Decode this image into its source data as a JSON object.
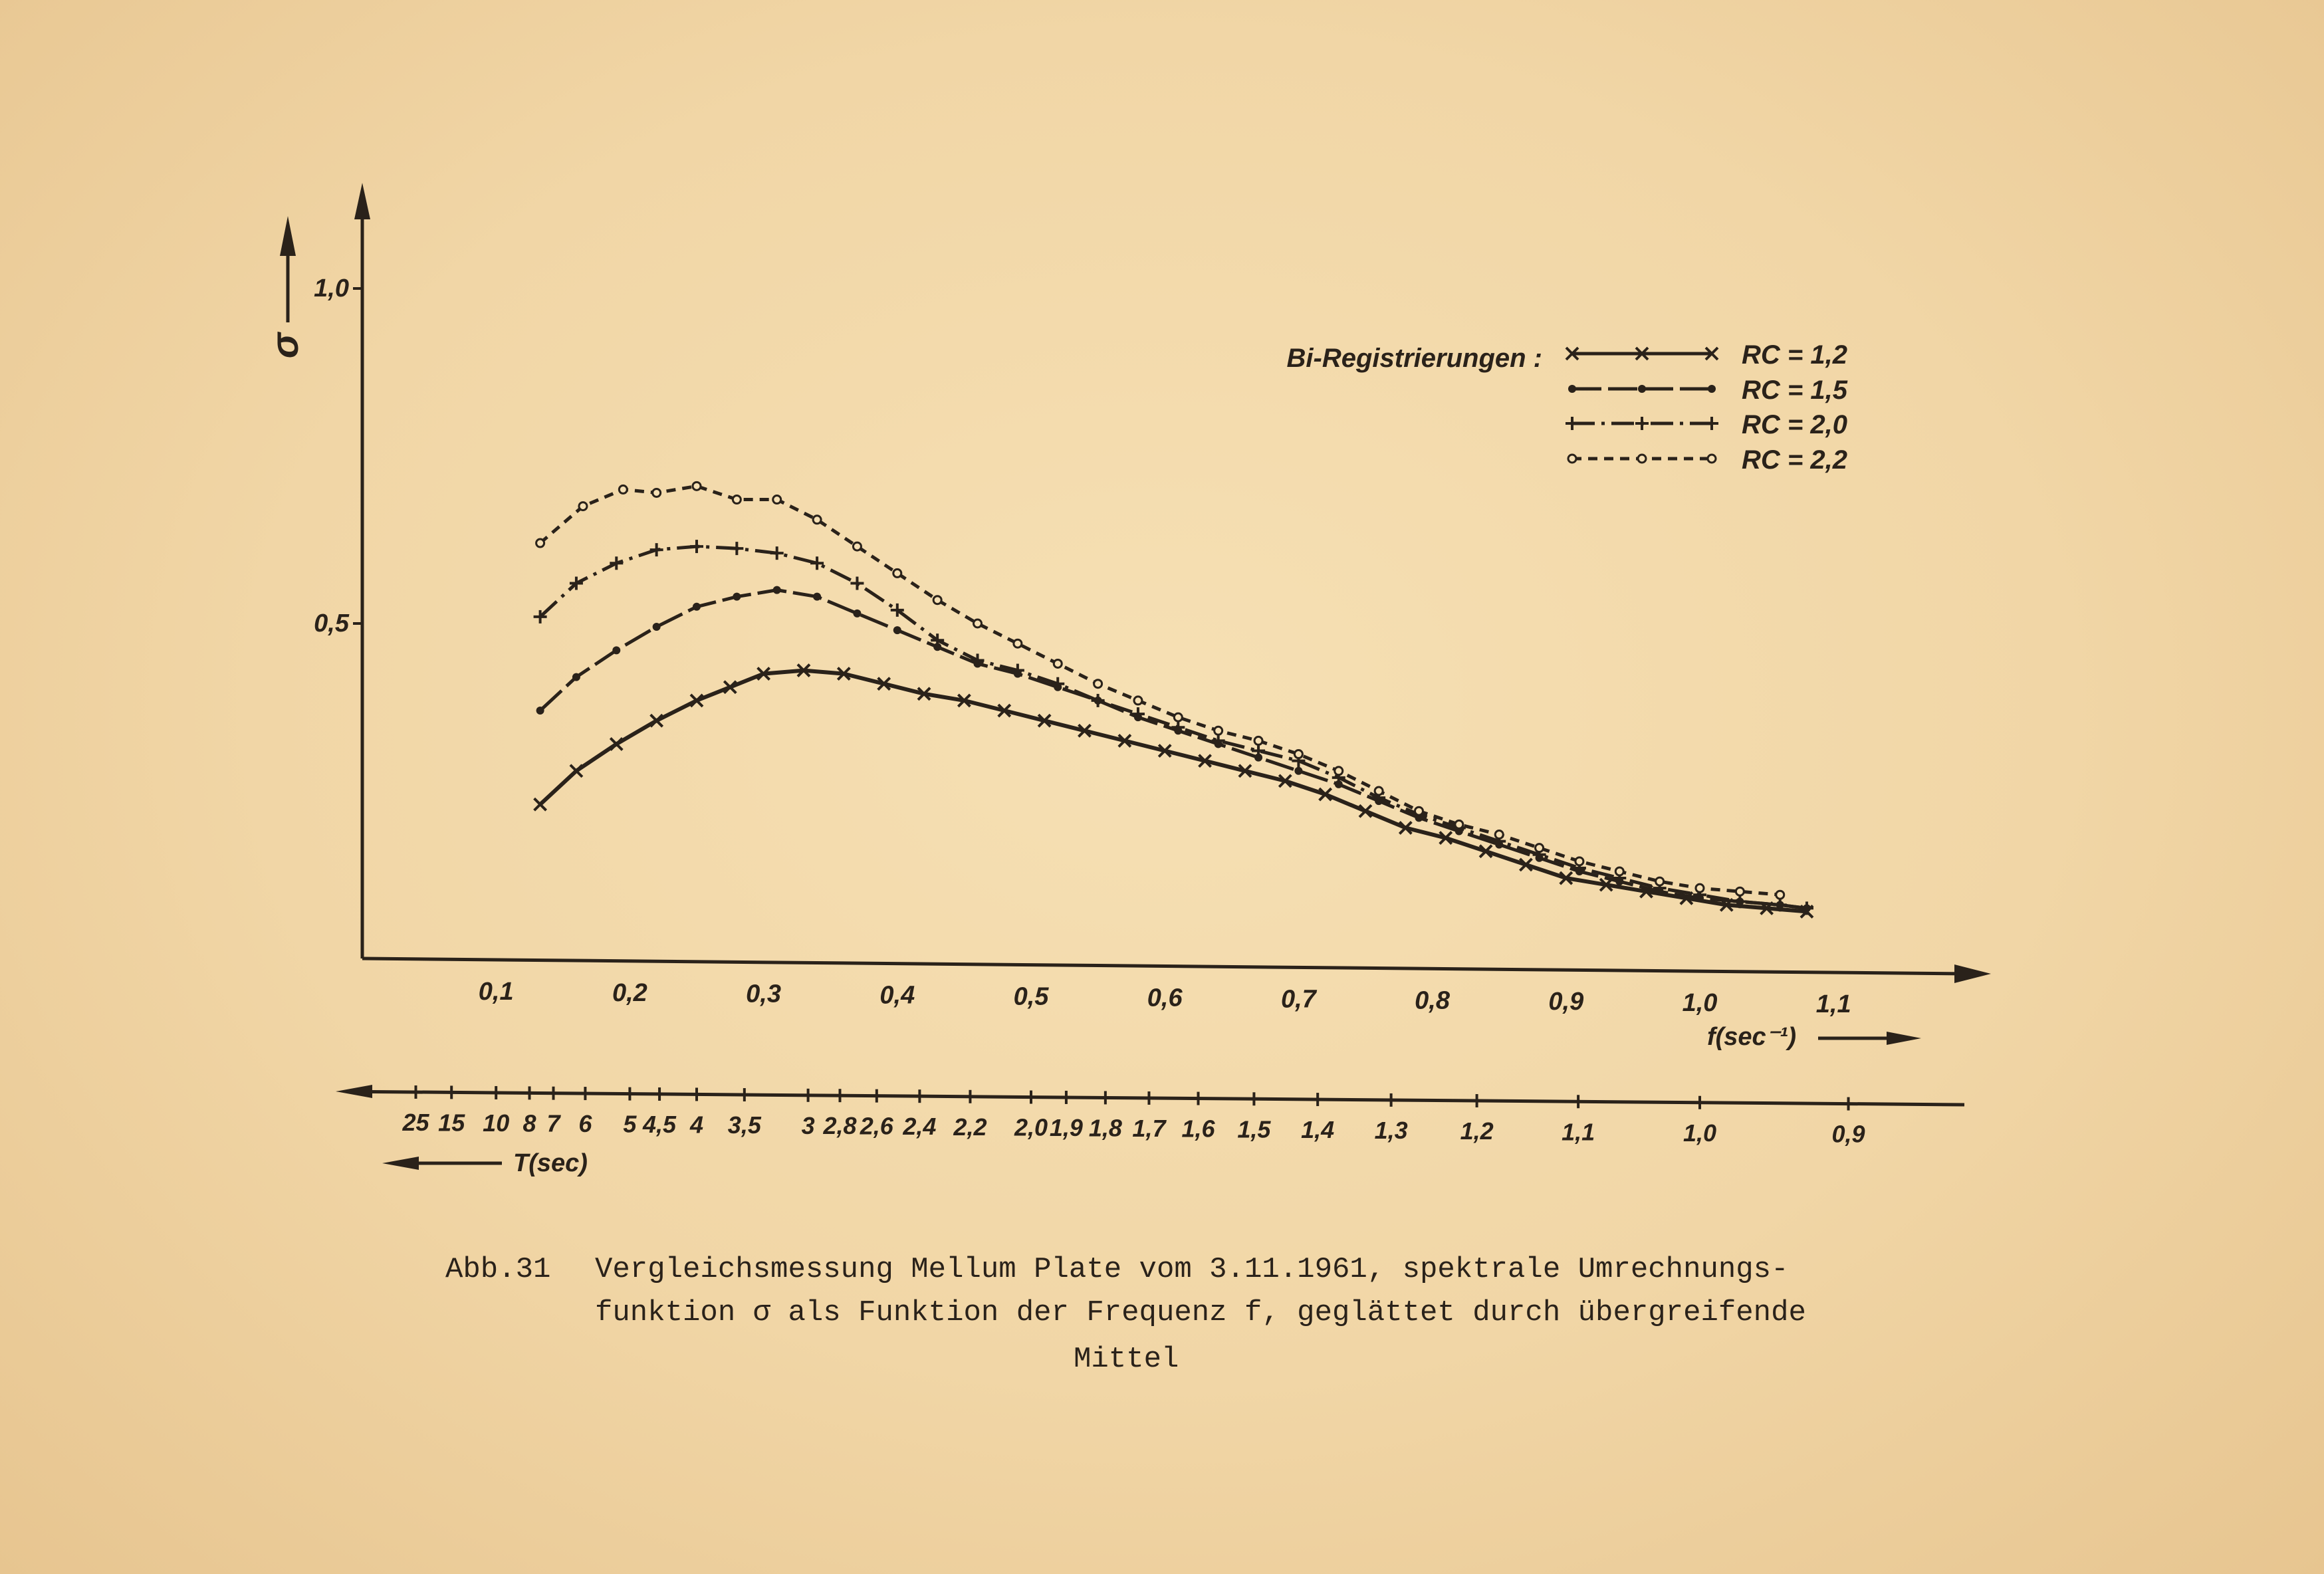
{
  "chart_data": {
    "type": "line",
    "ylabel": "σ",
    "y_ticks": [
      {
        "value": 0.5,
        "label": "0,5"
      },
      {
        "value": 1.0,
        "label": "1,0"
      }
    ],
    "ylim": [
      0,
      1.15
    ],
    "x_ticks": [
      {
        "value": 0.1,
        "label": "0,1"
      },
      {
        "value": 0.2,
        "label": "0,2"
      },
      {
        "value": 0.3,
        "label": "0,3"
      },
      {
        "value": 0.4,
        "label": "0,4"
      },
      {
        "value": 0.5,
        "label": "0,5"
      },
      {
        "value": 0.6,
        "label": "0,6"
      },
      {
        "value": 0.7,
        "label": "0,7"
      },
      {
        "value": 0.8,
        "label": "0,8"
      },
      {
        "value": 0.9,
        "label": "0,9"
      },
      {
        "value": 1.0,
        "label": "1,0"
      },
      {
        "value": 1.1,
        "label": "1,1"
      }
    ],
    "xlim": [
      0,
      1.22
    ],
    "xlabel": "f(sec⁻¹)",
    "legend_title": "Bi-Registrierungen :",
    "legend_position": "top-right",
    "series": [
      {
        "name": "RC = 1,2",
        "marker": "x",
        "dash": "solid",
        "x": [
          0.133,
          0.16,
          0.19,
          0.22,
          0.25,
          0.275,
          0.3,
          0.33,
          0.36,
          0.39,
          0.42,
          0.45,
          0.48,
          0.51,
          0.54,
          0.57,
          0.6,
          0.63,
          0.66,
          0.69,
          0.72,
          0.75,
          0.78,
          0.81,
          0.84,
          0.87,
          0.9,
          0.93,
          0.96,
          0.99,
          1.02,
          1.05,
          1.08
        ],
        "values": [
          0.23,
          0.28,
          0.32,
          0.355,
          0.385,
          0.405,
          0.425,
          0.43,
          0.425,
          0.41,
          0.395,
          0.385,
          0.37,
          0.355,
          0.34,
          0.325,
          0.31,
          0.295,
          0.28,
          0.265,
          0.245,
          0.22,
          0.195,
          0.18,
          0.16,
          0.14,
          0.12,
          0.11,
          0.1,
          0.09,
          0.08,
          0.075,
          0.07
        ]
      },
      {
        "name": "RC = 1,5",
        "marker": "dot",
        "dash": "long-dash",
        "x": [
          0.133,
          0.16,
          0.19,
          0.22,
          0.25,
          0.28,
          0.31,
          0.34,
          0.37,
          0.4,
          0.43,
          0.46,
          0.49,
          0.52,
          0.55,
          0.58,
          0.61,
          0.64,
          0.67,
          0.7,
          0.73,
          0.76,
          0.79,
          0.82,
          0.85,
          0.88,
          0.91,
          0.94,
          0.97,
          1.0,
          1.03,
          1.06,
          1.08
        ],
        "values": [
          0.37,
          0.42,
          0.46,
          0.495,
          0.525,
          0.54,
          0.55,
          0.54,
          0.515,
          0.49,
          0.465,
          0.44,
          0.425,
          0.405,
          0.385,
          0.36,
          0.34,
          0.32,
          0.3,
          0.28,
          0.26,
          0.235,
          0.21,
          0.19,
          0.17,
          0.15,
          0.13,
          0.115,
          0.1,
          0.09,
          0.085,
          0.08,
          0.075
        ]
      },
      {
        "name": "RC = 2,0",
        "marker": "plus",
        "dash": "dash-dot",
        "x": [
          0.133,
          0.16,
          0.19,
          0.22,
          0.25,
          0.28,
          0.31,
          0.34,
          0.37,
          0.4,
          0.43,
          0.46,
          0.49,
          0.52,
          0.55,
          0.58,
          0.61,
          0.64,
          0.67,
          0.7,
          0.73,
          0.76,
          0.79,
          0.82,
          0.85,
          0.88,
          0.91,
          0.94,
          0.97,
          1.0,
          1.03,
          1.06,
          1.08
        ],
        "values": [
          0.51,
          0.56,
          0.59,
          0.61,
          0.615,
          0.612,
          0.605,
          0.59,
          0.56,
          0.52,
          0.475,
          0.445,
          0.43,
          0.41,
          0.385,
          0.365,
          0.345,
          0.325,
          0.31,
          0.295,
          0.27,
          0.24,
          0.215,
          0.195,
          0.175,
          0.155,
          0.135,
          0.12,
          0.105,
          0.095,
          0.085,
          0.08,
          0.075
        ]
      },
      {
        "name": "RC = 2,2",
        "marker": "circle",
        "dash": "short-dash",
        "x": [
          0.133,
          0.165,
          0.195,
          0.22,
          0.25,
          0.28,
          0.31,
          0.34,
          0.37,
          0.4,
          0.43,
          0.46,
          0.49,
          0.52,
          0.55,
          0.58,
          0.61,
          0.64,
          0.67,
          0.7,
          0.73,
          0.76,
          0.79,
          0.82,
          0.85,
          0.88,
          0.91,
          0.94,
          0.97,
          1.0,
          1.03,
          1.06
        ],
        "values": [
          0.62,
          0.675,
          0.7,
          0.695,
          0.705,
          0.685,
          0.685,
          0.655,
          0.615,
          0.575,
          0.535,
          0.5,
          0.47,
          0.44,
          0.41,
          0.385,
          0.36,
          0.34,
          0.325,
          0.305,
          0.28,
          0.25,
          0.22,
          0.2,
          0.185,
          0.165,
          0.145,
          0.13,
          0.115,
          0.105,
          0.1,
          0.095
        ]
      }
    ],
    "secondary_axis": {
      "label": "T(sec)",
      "ticks": [
        {
          "label": "25",
          "f": 0.04
        },
        {
          "label": "15",
          "f": 0.0667
        },
        {
          "label": "10",
          "f": 0.1
        },
        {
          "label": "8",
          "f": 0.125
        },
        {
          "label": "7",
          "f": 0.1429
        },
        {
          "label": "6",
          "f": 0.1667
        },
        {
          "label": "5",
          "f": 0.2
        },
        {
          "label": "4,5",
          "f": 0.2222
        },
        {
          "label": "4",
          "f": 0.25
        },
        {
          "label": "3,5",
          "f": 0.2857
        },
        {
          "label": "3",
          "f": 0.3333
        },
        {
          "label": "2,8",
          "f": 0.3571
        },
        {
          "label": "2,6",
          "f": 0.3846
        },
        {
          "label": "2,4",
          "f": 0.4167
        },
        {
          "label": "2,2",
          "f": 0.4545
        },
        {
          "label": "2,0",
          "f": 0.5
        },
        {
          "label": "1,9",
          "f": 0.5263
        },
        {
          "label": "1,8",
          "f": 0.5556
        },
        {
          "label": "1,7",
          "f": 0.5882
        },
        {
          "label": "1,6",
          "f": 0.625
        },
        {
          "label": "1,5",
          "f": 0.6667
        },
        {
          "label": "1,4",
          "f": 0.7143
        },
        {
          "label": "1,3",
          "f": 0.7692
        },
        {
          "label": "1,2",
          "f": 0.8333
        },
        {
          "label": "1,1",
          "f": 0.9091
        },
        {
          "label": "1,0",
          "f": 1.0
        },
        {
          "label": "0,9",
          "f": 1.1111
        }
      ]
    }
  },
  "caption": {
    "label": "Abb.31",
    "line1": "Vergleichsmessung Mellum Plate vom 3.11.1961, spektrale Umrechnungs-",
    "line2": "funktion σ als Funktion der Frequenz f, geglättet durch übergreifende",
    "line3": "Mittel"
  },
  "colors": {
    "ink": "#2a221a",
    "paper": "#f1d6a6"
  }
}
